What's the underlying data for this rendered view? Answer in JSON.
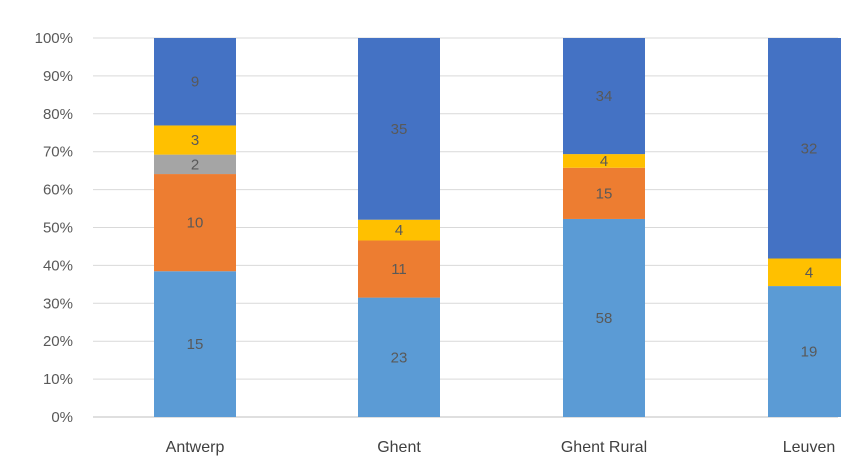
{
  "chart_data": {
    "type": "bar",
    "stacked": "percent",
    "categories": [
      "Antwerp",
      "Ghent",
      "Ghent Rural",
      "Leuven"
    ],
    "series": [
      {
        "values": [
          15,
          23,
          58,
          19
        ],
        "color": "#5B9BD5"
      },
      {
        "values": [
          10,
          11,
          15,
          0
        ],
        "color": "#ED7D31"
      },
      {
        "values": [
          2,
          0,
          0,
          0
        ],
        "color": "#A5A5A5"
      },
      {
        "values": [
          3,
          4,
          4,
          4
        ],
        "color": "#FFC000"
      },
      {
        "values": [
          9,
          35,
          34,
          32
        ],
        "color": "#4472C4"
      }
    ],
    "yticks": [
      "0%",
      "10%",
      "20%",
      "30%",
      "40%",
      "50%",
      "60%",
      "70%",
      "80%",
      "90%",
      "100%"
    ],
    "ylim": [
      0,
      100
    ],
    "grid": true,
    "legend": "none",
    "title": "",
    "xlabel": "",
    "ylabel": ""
  }
}
